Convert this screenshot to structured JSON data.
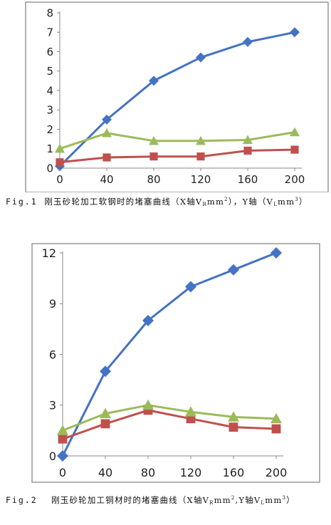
{
  "colors": {
    "blue": "#4472C4",
    "red": "#C0504D",
    "green": "#9BBB59",
    "axis": "#888888",
    "frame": "#7f7f7f"
  },
  "chart_data": [
    {
      "type": "line",
      "title": "",
      "x": [
        0,
        40,
        80,
        120,
        160,
        200
      ],
      "x_tick_labels": [
        "0",
        "40",
        "80",
        "120",
        "160",
        "200"
      ],
      "ylim": [
        0,
        8
      ],
      "y_ticks": [
        0,
        1,
        2,
        3,
        4,
        5,
        6,
        7,
        8
      ],
      "y_tick_labels": [
        "0",
        "1",
        "2",
        "3",
        "4",
        "5",
        "6",
        "7",
        "8"
      ],
      "grid": false,
      "legend": "none",
      "series": [
        {
          "marker": "diamond",
          "color": "#4472C4",
          "values": [
            0.1,
            2.5,
            4.5,
            5.7,
            6.5,
            7.0
          ]
        },
        {
          "marker": "square",
          "color": "#C0504D",
          "values": [
            0.3,
            0.55,
            0.6,
            0.6,
            0.9,
            0.95
          ]
        },
        {
          "marker": "triangle",
          "color": "#9BBB59",
          "values": [
            1.0,
            1.8,
            1.4,
            1.4,
            1.45,
            1.85
          ]
        }
      ]
    },
    {
      "type": "line",
      "title": "",
      "x": [
        0,
        40,
        80,
        120,
        160,
        200
      ],
      "x_tick_labels": [
        "0",
        "40",
        "80",
        "120",
        "160",
        "200"
      ],
      "ylim": [
        0,
        12
      ],
      "y_ticks": [
        0,
        3,
        6,
        9,
        12
      ],
      "y_tick_labels": [
        "0",
        "3",
        "6",
        "9",
        "12"
      ],
      "grid": false,
      "legend": "none",
      "series": [
        {
          "marker": "diamond",
          "color": "#4472C4",
          "values": [
            0,
            5,
            8,
            10,
            11,
            12
          ]
        },
        {
          "marker": "square",
          "color": "#C0504D",
          "values": [
            1.0,
            1.9,
            2.7,
            2.2,
            1.7,
            1.6
          ]
        },
        {
          "marker": "triangle",
          "color": "#9BBB59",
          "values": [
            1.5,
            2.5,
            3.0,
            2.6,
            2.3,
            2.2
          ]
        }
      ]
    }
  ],
  "captions": {
    "fig1": {
      "label": "Fig.1",
      "text": "刚玉砂轮加工软钢时的堵塞曲线（X轴V",
      "sub1": "R",
      "mid": "mm",
      "sup1": "2",
      "mid2": "），Y轴（V",
      "sub2": "L",
      "mid3": "mm",
      "sup2": "3",
      "end": "）"
    },
    "fig2": {
      "label": "Fig.2",
      "text": "刚玉砂轮加工铜材时的堵塞曲线（X轴V",
      "sub1": "R",
      "mid": "mm",
      "sup1": "2",
      "mid2": ",Y轴V",
      "sub2": "L",
      "mid3": "mm",
      "sup2": "3",
      "end": "）"
    }
  }
}
